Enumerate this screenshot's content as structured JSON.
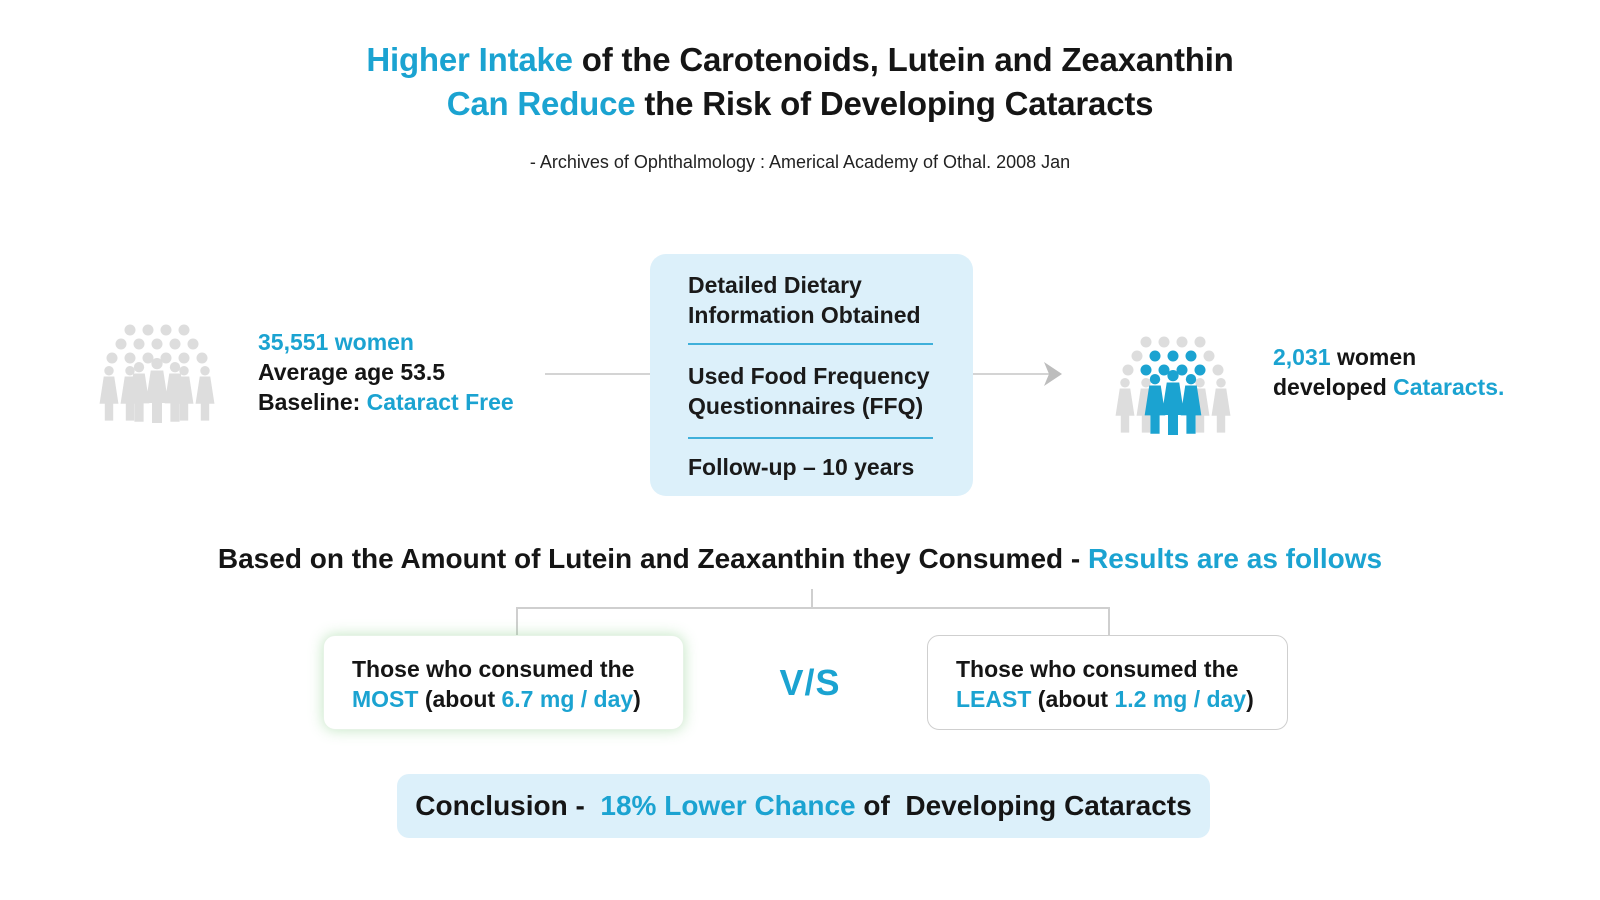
{
  "header": {
    "title_line1_highlight": "Higher Intake",
    "title_line1_rest": " of the Carotenoids, Lutein and Zeaxanthin",
    "title_line2_highlight": "Can Reduce",
    "title_line2_rest": " the Risk of Developing Cataracts",
    "source": "-  Archives of Ophthalmology : Americal Academy of Othal. 2008 Jan"
  },
  "colors": {
    "accent": "#1ba3d1",
    "box_bg": "#dcf0fa",
    "figure_grey": "#dddddd",
    "connector": "#cfcfcf"
  },
  "left_group": {
    "icon": "women-group-icon",
    "count": "35,551",
    "count_label": " women",
    "age_line": "Average age 53.5",
    "baseline_label": "Baseline: ",
    "baseline_value": "Cataract Free"
  },
  "study_box": {
    "items": [
      "Detailed Dietary Information Obtained",
      "Used Food Frequency Questionnaires (FFQ)",
      "Follow-up – 10 years"
    ]
  },
  "right_group": {
    "icon": "women-group-highlighted-icon",
    "count": "2,031",
    "count_label": " women",
    "line2_prefix": "developed ",
    "line2_value": "Cataracts."
  },
  "results": {
    "heading_text": "Based on the Amount of Lutein and Zeaxanthin they Consumed - ",
    "heading_highlight": "Results are as follows",
    "most": {
      "line1": "Those who consumed the",
      "level": "MOST",
      "mid": " (about ",
      "amount": "6.7 mg / day",
      "end": ")"
    },
    "vs": "V/S",
    "least": {
      "line1": "Those who consumed the",
      "level": "LEAST",
      "mid": " (about ",
      "amount": "1.2 mg / day",
      "end": ")"
    }
  },
  "conclusion": {
    "label": "Conclusion -  ",
    "highlight": "18% Lower Chance",
    "rest": " of  Developing Cataracts"
  }
}
